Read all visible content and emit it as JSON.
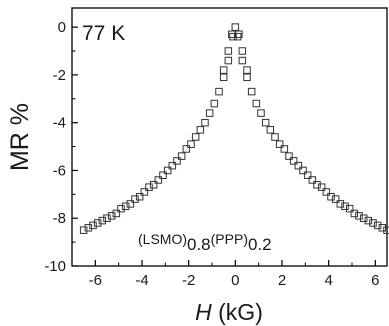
{
  "chart_data": {
    "type": "scatter",
    "title": "",
    "xlabel_symbol": "H",
    "xlabel_unit": " (kG)",
    "ylabel": "MR %",
    "xlim": [
      -7,
      6.5
    ],
    "ylim": [
      -10,
      0.8
    ],
    "xticks": [
      -6,
      -4,
      -2,
      0,
      2,
      4,
      6
    ],
    "yticks": [
      0,
      -2,
      -4,
      -6,
      -8,
      -10
    ],
    "annotations": {
      "temperature": "77 K",
      "sample": {
        "open1": "(LSMO)",
        "sub1": "0.8",
        "open2": "(PPP)",
        "sub2": "0.2"
      }
    },
    "marker": "open-square",
    "series": [
      {
        "x": [
          -6.5,
          -6.3,
          -6.1,
          -5.9,
          -5.7,
          -5.5,
          -5.3,
          -5.1,
          -4.9,
          -4.7,
          -4.5,
          -4.3,
          -4.1,
          -3.9,
          -3.7,
          -3.5,
          -3.3,
          -3.1,
          -2.9,
          -2.7,
          -2.5,
          -2.3,
          -2.1,
          -1.9,
          -1.7,
          -1.5,
          -1.3,
          -1.1,
          -0.9,
          -0.7,
          -0.5,
          -0.3,
          -0.1,
          0.1,
          0.3,
          0.5,
          0.7,
          0.9,
          1.1,
          1.3,
          1.5,
          1.7,
          1.9,
          2.1,
          2.3,
          2.5,
          2.7,
          2.9,
          3.1,
          3.3,
          3.5,
          3.7,
          3.9,
          4.1,
          4.3,
          4.5,
          4.7,
          4.9,
          5.1,
          5.3,
          5.5,
          5.7,
          5.9,
          6.1,
          6.3,
          6.5
        ],
        "y": [
          -8.5,
          -8.4,
          -8.3,
          -8.2,
          -8.1,
          -8.0,
          -7.9,
          -7.8,
          -7.6,
          -7.5,
          -7.4,
          -7.2,
          -7.1,
          -6.9,
          -6.7,
          -6.6,
          -6.4,
          -6.2,
          -6.0,
          -5.8,
          -5.6,
          -5.4,
          -5.1,
          -4.9,
          -4.6,
          -4.3,
          -4.0,
          -3.6,
          -3.2,
          -2.7,
          -2.1,
          -1.4,
          -0.4,
          -0.4,
          -1.4,
          -2.1,
          -2.7,
          -3.2,
          -3.6,
          -4.0,
          -4.3,
          -4.6,
          -4.9,
          -5.1,
          -5.4,
          -5.6,
          -5.8,
          -6.0,
          -6.2,
          -6.4,
          -6.6,
          -6.7,
          -6.9,
          -7.1,
          -7.2,
          -7.4,
          -7.5,
          -7.6,
          -7.8,
          -7.9,
          -8.0,
          -8.1,
          -8.2,
          -8.3,
          -8.4,
          -8.5
        ]
      },
      {
        "x": [
          -0.5,
          -0.3,
          -0.15,
          0,
          0.15,
          0.3,
          0.5
        ],
        "y": [
          -1.8,
          -1.0,
          -0.3,
          0.0,
          -0.3,
          -1.0,
          -1.8
        ]
      }
    ]
  }
}
